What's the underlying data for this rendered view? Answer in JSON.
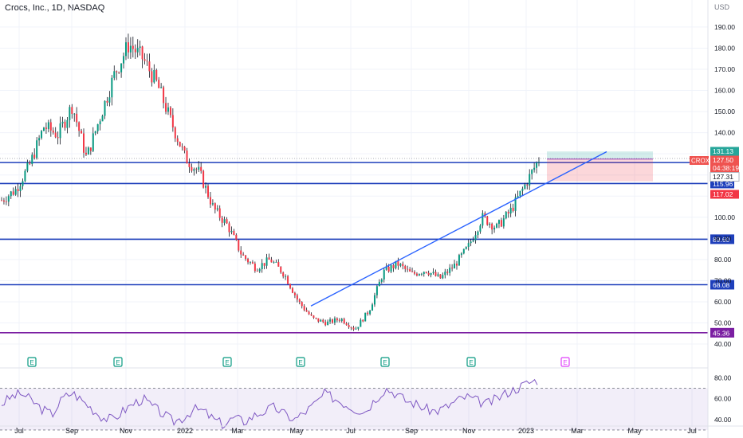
{
  "header": {
    "title": "Crocs, Inc., 1D, NASDAQ",
    "currency": "USD"
  },
  "chart_data": {
    "type": "candlestick",
    "ticker": "CROX",
    "price_axis_ticks": [
      190,
      180,
      170,
      160,
      150,
      140,
      130,
      120,
      110,
      100,
      90,
      80,
      70,
      60,
      50,
      40
    ],
    "price_axis_tick_labels": [
      "190.00",
      "180.00",
      "170.00",
      "160.00",
      "150.00",
      "140.00",
      "130.00",
      "120.00",
      "110.00",
      "100.00",
      "90.00",
      "80.00",
      "70.00",
      "60.00",
      "50.00",
      "40.00"
    ],
    "price_range": [
      37,
      196
    ],
    "time_axis_labels": [
      "Jul",
      "Sep",
      "Nov",
      "2022",
      "Mar",
      "May",
      "Jul",
      "Sep",
      "Nov",
      "2023",
      "Mar",
      "May",
      "Jul"
    ],
    "horizontal_levels": [
      {
        "price": 125.87,
        "label": "125.87",
        "color": "#1e3fbb"
      },
      {
        "price": 115.96,
        "label": "115.96",
        "color": "#1e3fbb"
      },
      {
        "price": 89.6,
        "label": "89.60",
        "color": "#1e3fbb"
      },
      {
        "price": 68.08,
        "label": "68.08",
        "color": "#1e3fbb"
      },
      {
        "price": 45.36,
        "label": "45.36",
        "color": "#7b1fa2"
      }
    ],
    "price_labels": [
      {
        "value": "131.13",
        "color": "#26a69a"
      },
      {
        "value": "127.50",
        "color": "#ef5350"
      },
      {
        "value": "04:38:19",
        "color": "#ef5350"
      },
      {
        "value": "127.31",
        "color": "#ffffff"
      },
      {
        "value": "117.02",
        "color": "#f23645"
      }
    ],
    "symbol_tag": "CROX",
    "trendline": {
      "from": {
        "date": "2022-05",
        "price": 58
      },
      "to": {
        "date": "2023-04",
        "price": 131
      }
    },
    "position_box": {
      "entry": 127.31,
      "target": 131.13,
      "stop": 117.02
    },
    "price_path": [
      {
        "d": "2021-06",
        "p": 108
      },
      {
        "d": "2021-07",
        "p": 113
      },
      {
        "d": "2021-07b",
        "p": 125
      },
      {
        "d": "2021-08",
        "p": 143
      },
      {
        "d": "2021-08b",
        "p": 139
      },
      {
        "d": "2021-09",
        "p": 153
      },
      {
        "d": "2021-09b",
        "p": 128
      },
      {
        "d": "2021-10",
        "p": 148
      },
      {
        "d": "2021-10b",
        "p": 168
      },
      {
        "d": "2021-11",
        "p": 182
      },
      {
        "d": "2021-11b",
        "p": 175
      },
      {
        "d": "2021-12",
        "p": 163
      },
      {
        "d": "2021-12b",
        "p": 145
      },
      {
        "d": "2022-01",
        "p": 128
      },
      {
        "d": "2022-01b",
        "p": 121
      },
      {
        "d": "2022-02",
        "p": 104
      },
      {
        "d": "2022-02b",
        "p": 96
      },
      {
        "d": "2022-03",
        "p": 82
      },
      {
        "d": "2022-03b",
        "p": 76
      },
      {
        "d": "2022-04",
        "p": 80
      },
      {
        "d": "2022-04b",
        "p": 73
      },
      {
        "d": "2022-05",
        "p": 60
      },
      {
        "d": "2022-05b",
        "p": 52
      },
      {
        "d": "2022-06",
        "p": 50
      },
      {
        "d": "2022-06b",
        "p": 52
      },
      {
        "d": "2022-07",
        "p": 47
      },
      {
        "d": "2022-07b",
        "p": 56
      },
      {
        "d": "2022-08",
        "p": 74
      },
      {
        "d": "2022-08b",
        "p": 78
      },
      {
        "d": "2022-09",
        "p": 73
      },
      {
        "d": "2022-09b",
        "p": 75
      },
      {
        "d": "2022-10",
        "p": 71
      },
      {
        "d": "2022-10b",
        "p": 77
      },
      {
        "d": "2022-11",
        "p": 86
      },
      {
        "d": "2022-11b",
        "p": 100
      },
      {
        "d": "2022-12",
        "p": 95
      },
      {
        "d": "2022-12b",
        "p": 103
      },
      {
        "d": "2023-01",
        "p": 115
      },
      {
        "d": "2023-01b",
        "p": 127.5
      }
    ],
    "earnings_markers": [
      "E",
      "E",
      "E",
      "E",
      "E",
      "E",
      "E"
    ],
    "rsi": {
      "axis_ticks": [
        "80.00",
        "60.00",
        "40.00"
      ],
      "bands": [
        70,
        30
      ],
      "values": [
        55,
        62,
        65,
        58,
        50,
        45,
        60,
        66,
        58,
        50,
        42,
        40,
        48,
        55,
        60,
        52,
        45,
        38,
        42,
        50,
        48,
        40,
        35,
        42,
        38,
        44,
        48,
        52,
        45,
        40,
        47,
        55,
        65,
        60,
        55,
        50,
        48,
        60,
        70,
        65,
        58,
        55,
        50,
        48,
        52,
        58,
        62,
        58,
        55,
        60,
        66,
        70,
        75,
        78
      ]
    }
  }
}
